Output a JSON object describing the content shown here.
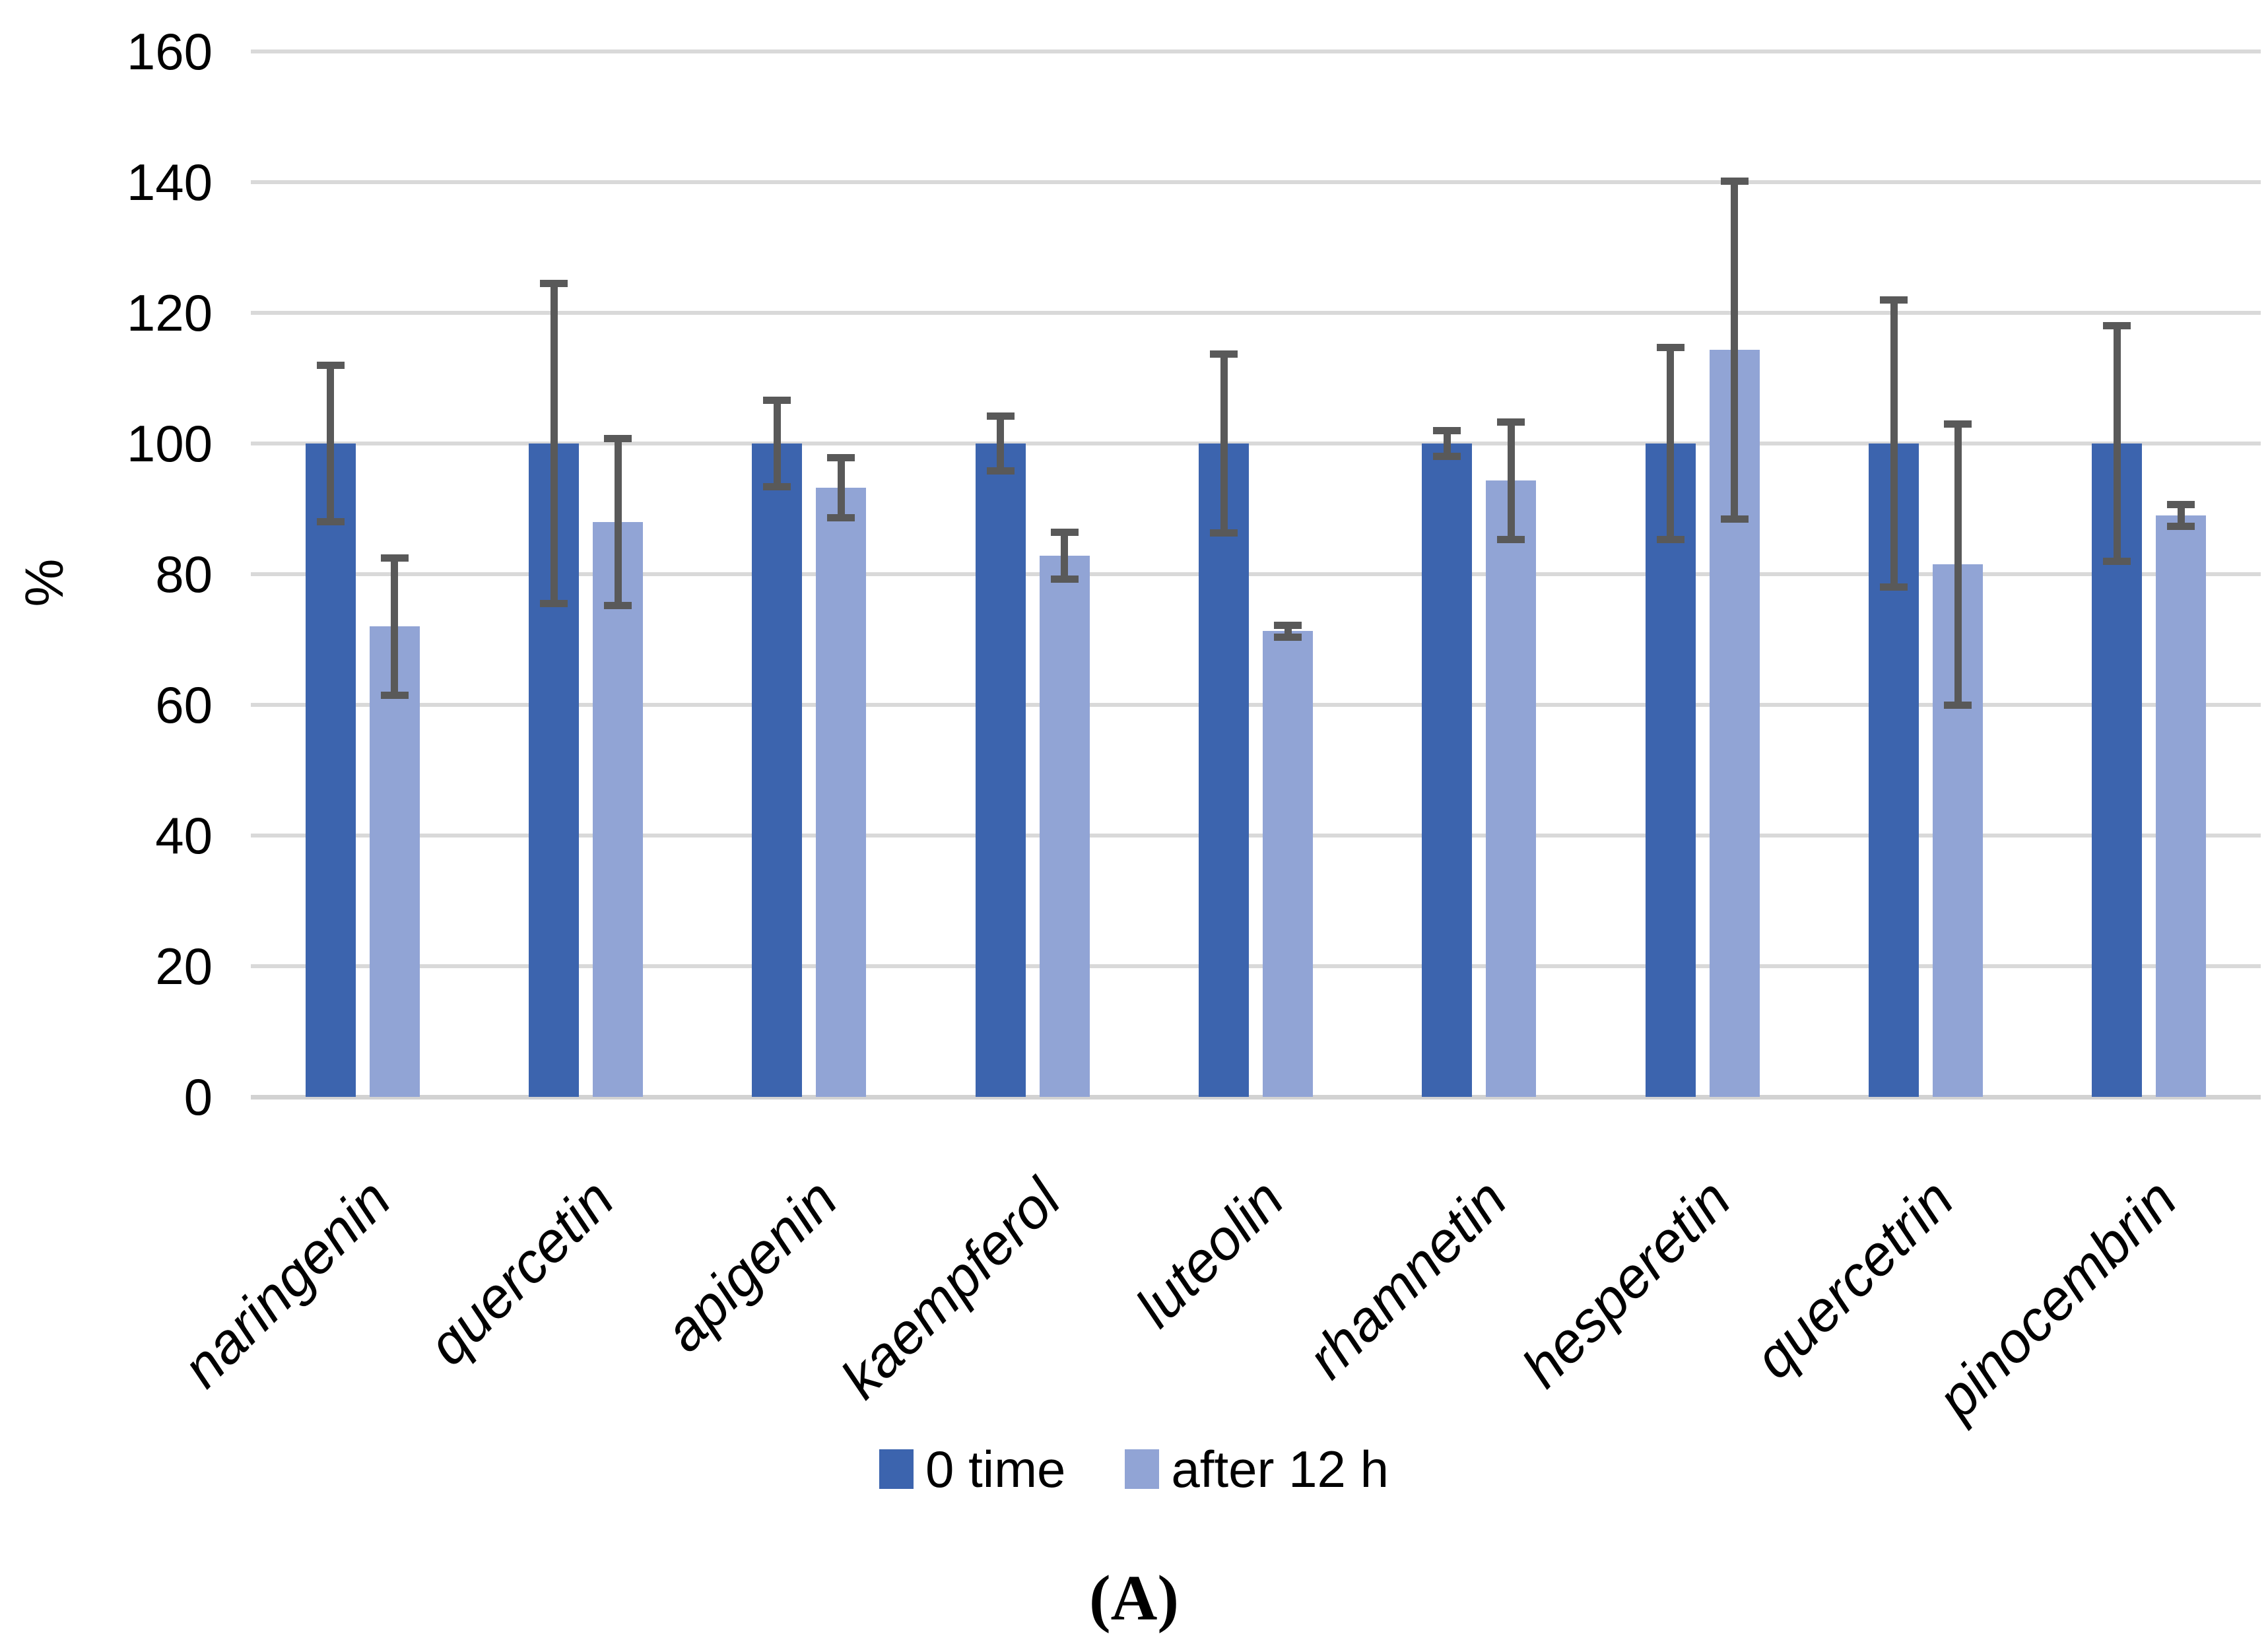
{
  "chart_data": {
    "type": "bar",
    "title": "",
    "xlabel": "",
    "ylabel": "%",
    "caption": "(A)",
    "ylim": [
      0,
      160
    ],
    "yticks": [
      0,
      20,
      40,
      60,
      80,
      100,
      120,
      140,
      160
    ],
    "grid": true,
    "legend_position": "bottom-center",
    "categories": [
      "naringenin",
      "quercetin",
      "apigenin",
      "kaempferol",
      "luteolin",
      "rhamnetin",
      "hesperetin",
      "quercetrin",
      "pinocembrin"
    ],
    "series": [
      {
        "name": "0 time",
        "color": "#3C64AE",
        "values": [
          100,
          100,
          100,
          100,
          100,
          100,
          100,
          100,
          100
        ],
        "errors": [
          12,
          24.5,
          6.6,
          4.2,
          13.7,
          2,
          14.7,
          22,
          18
        ]
      },
      {
        "name": "after 12 h",
        "color": "#91A4D5",
        "values": [
          72,
          88,
          93.2,
          82.8,
          71.3,
          94.3,
          114.3,
          81.5,
          89
        ],
        "errors": [
          10.5,
          12.8,
          4.6,
          3.6,
          0.9,
          9,
          25.9,
          21.5,
          1.7
        ]
      }
    ],
    "error_bar_color": "#595959",
    "gridline_color": "#D9D9D9",
    "axis_line_color": "#D2D2D2",
    "text_color": "#000000"
  }
}
